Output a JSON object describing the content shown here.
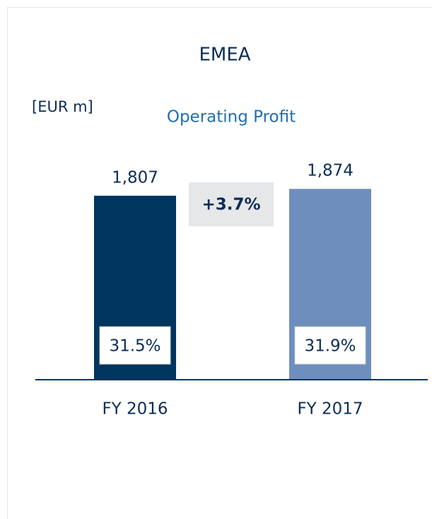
{
  "chart_data": {
    "type": "bar",
    "title": "EMEA",
    "subtitle": "Operating Profit",
    "unit_label": "[EUR m]",
    "categories": [
      "FY 2016",
      "FY 2017"
    ],
    "values": [
      1807,
      1874
    ],
    "value_labels": [
      "1,807",
      "1,874"
    ],
    "colors": [
      "#003560",
      "#6e8fbd"
    ],
    "margin_labels": [
      "31.5%",
      "31.9%"
    ],
    "growth_label": "+3.7%",
    "ylim": [
      0,
      2000
    ]
  }
}
